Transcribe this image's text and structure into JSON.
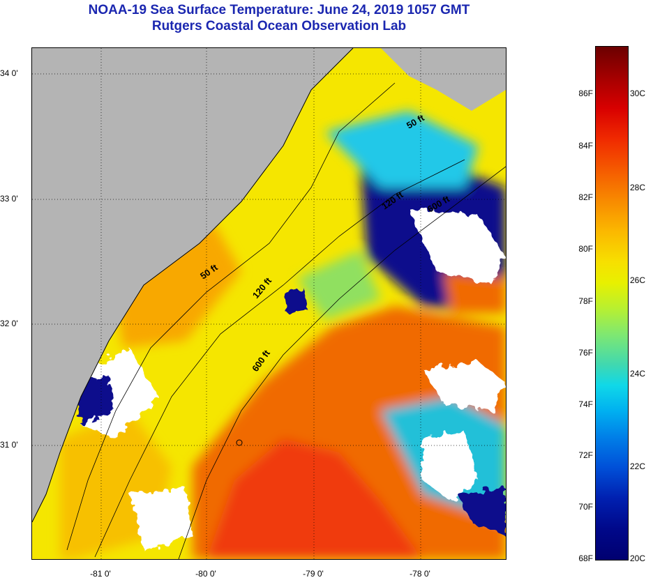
{
  "header": {
    "title": "NOAA-19 Sea Surface Temperature:  June 24, 2019 1057 GMT",
    "subtitle": "Rutgers Coastal Ocean Observation Lab"
  },
  "map": {
    "lat_labels": [
      "34 0'",
      "33 0'",
      "32 0'",
      "31 0'"
    ],
    "lon_labels": [
      "-81 0'",
      "-80 0'",
      "-79 0'",
      "-78 0'"
    ],
    "contour_labels": [
      "50 ft",
      "120 ft",
      "600 ft",
      "600 ft",
      "120 ft",
      "50 ft"
    ],
    "colors": {
      "land": "#b4b4b4",
      "cloud": "#ffffff",
      "cold": "#0a0a8c",
      "cool": "#20c8e8",
      "mild": "#e8f000",
      "warm": "#f8a000",
      "hot": "#f04000"
    }
  },
  "colorbar": {
    "fahrenheit": [
      "86F",
      "84F",
      "82F",
      "80F",
      "78F",
      "76F",
      "74F",
      "72F",
      "70F",
      "68F"
    ],
    "celsius": [
      "30C",
      "28C",
      "26C",
      "24C",
      "22C",
      "20C"
    ]
  }
}
